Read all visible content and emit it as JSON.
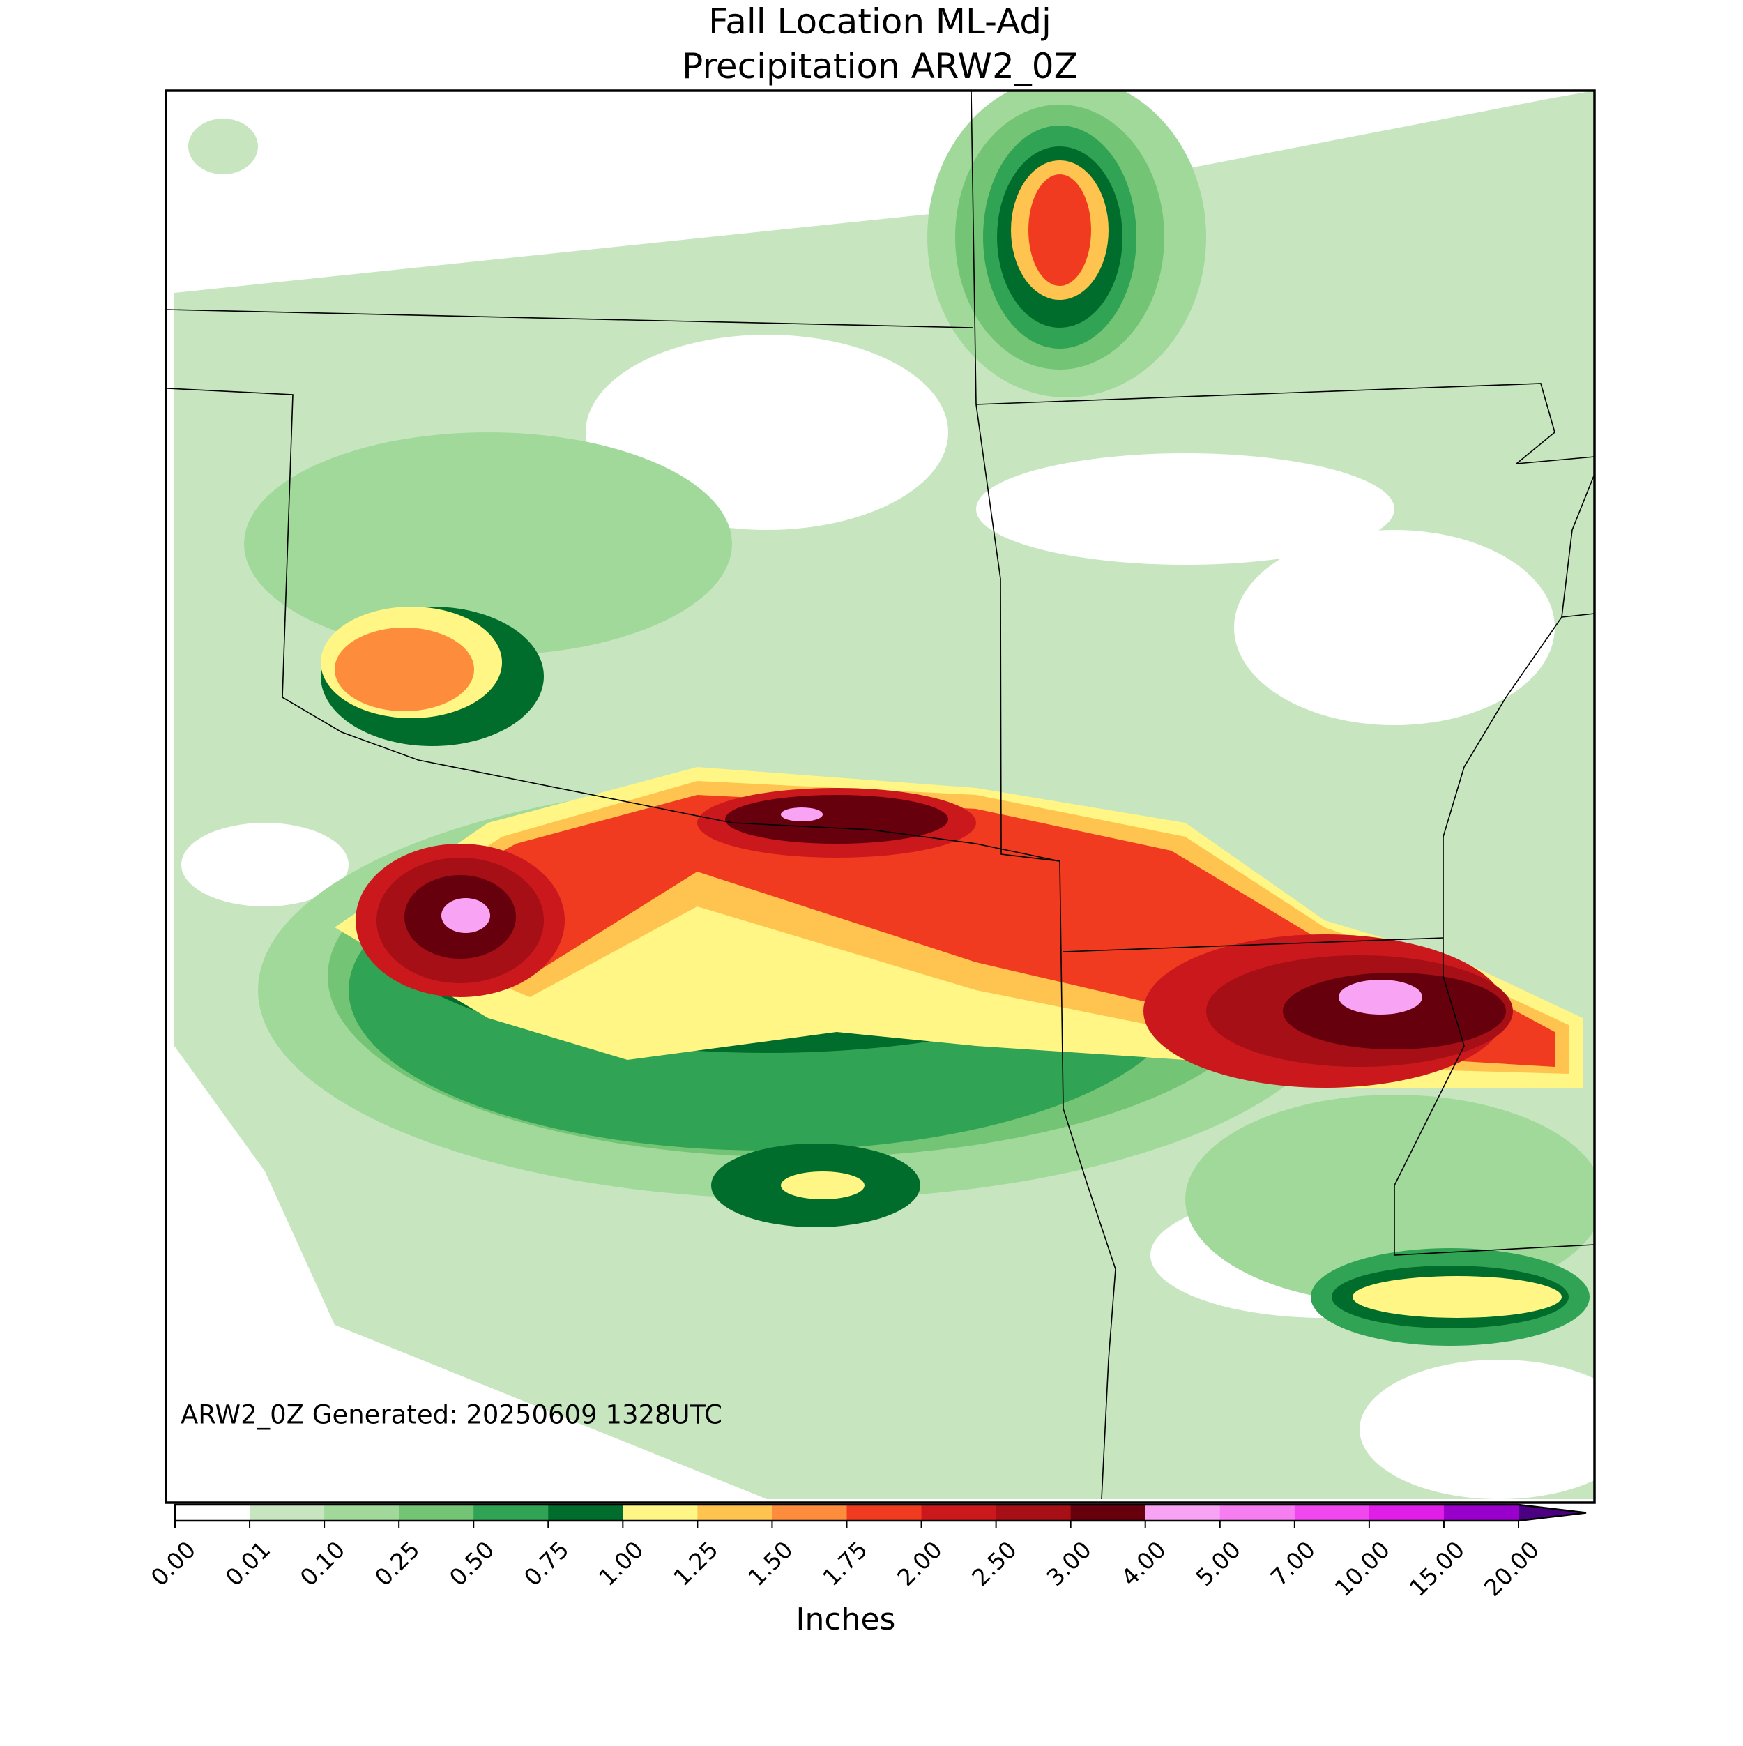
{
  "title": [
    "Fall Location ML-Adj",
    "Precipitation ARW2_0Z"
  ],
  "annotation": "ARW2_0Z Generated: 20250609 1328UTC",
  "colorbar": {
    "label": "Inches",
    "ticks": [
      {
        "value": 0,
        "label": "0.00"
      },
      {
        "value": 0.01,
        "label": "0.01"
      },
      {
        "value": 0.1,
        "label": "0.10"
      },
      {
        "value": 0.25,
        "label": "0.25"
      },
      {
        "value": 0.5,
        "label": "0.50"
      },
      {
        "value": 0.75,
        "label": "0.75"
      },
      {
        "value": 1,
        "label": "1.00"
      },
      {
        "value": 1.25,
        "label": "1.25"
      },
      {
        "value": 1.5,
        "label": "1.50"
      },
      {
        "value": 1.75,
        "label": "1.75"
      },
      {
        "value": 2,
        "label": "2.00"
      },
      {
        "value": 2.5,
        "label": "2.50"
      },
      {
        "value": 3,
        "label": "3.00"
      },
      {
        "value": 4,
        "label": "4.00"
      },
      {
        "value": 5,
        "label": "5.00"
      },
      {
        "value": 7,
        "label": "7.00"
      },
      {
        "value": 10,
        "label": "10.00"
      },
      {
        "value": 15,
        "label": "15.00"
      },
      {
        "value": 20,
        "label": "20.00"
      }
    ],
    "colors": [
      "#ffffff",
      "#c7e6c0",
      "#a1d99b",
      "#74c476",
      "#31a354",
      "#006d2c",
      "#fff685",
      "#fec44f",
      "#fd8d3c",
      "#f03b20",
      "#cb181d",
      "#a50f15",
      "#67000d",
      "#f9a3f4",
      "#f77ef0",
      "#f048ee",
      "#e01ee8",
      "#9900cc"
    ],
    "extend_color": "#4b0082"
  }
}
